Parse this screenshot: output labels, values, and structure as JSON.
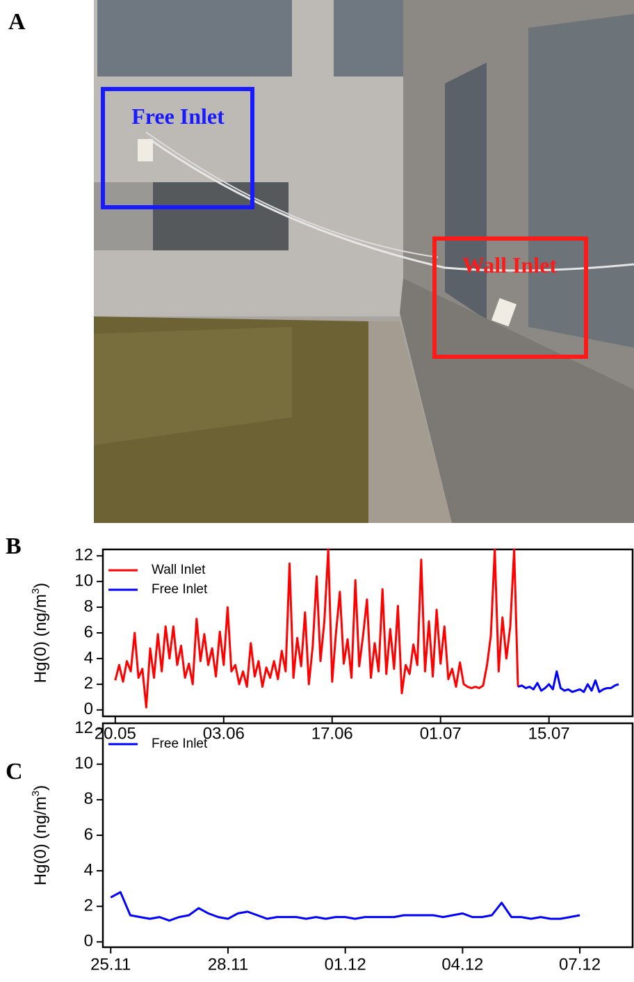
{
  "panel_labels": [
    "A",
    "B",
    "C"
  ],
  "photo": {
    "annotations": [
      "Free Inlet",
      "Wall Inlet"
    ]
  },
  "chart_data": [
    {
      "type": "line",
      "ylabel": [
        "Hg(0) (ng/m",
        "3",
        ")"
      ],
      "legend": "upper left",
      "xlim": [
        138.4,
        206.8
      ],
      "ylim": [
        -0.5,
        12.5
      ],
      "xticks": [
        {
          "value": 140,
          "label": "20.05"
        },
        {
          "value": 154,
          "label": "03.06"
        },
        {
          "value": 168,
          "label": "17.06"
        },
        {
          "value": 182,
          "label": "01.07"
        },
        {
          "value": 196,
          "label": "15.07"
        }
      ],
      "yticks": [
        0,
        2,
        4,
        6,
        8,
        10,
        12
      ],
      "series": [
        {
          "name": "Wall Inlet",
          "color": "#ff0000",
          "x": [
            140,
            140.5,
            141,
            141.5,
            142,
            142.5,
            143,
            143.5,
            144,
            144.5,
            145,
            145.5,
            146,
            146.5,
            147,
            147.5,
            148,
            148.5,
            149,
            149.5,
            150,
            150.5,
            151,
            151.5,
            152,
            152.5,
            153,
            153.5,
            154,
            154.5,
            155,
            155.5,
            156,
            156.5,
            157,
            157.5,
            158,
            158.5,
            159,
            159.5,
            160,
            160.5,
            161,
            161.5,
            162,
            162.5,
            163,
            163.5,
            164,
            164.5,
            165,
            165.5,
            166,
            166.5,
            167,
            167.5,
            168,
            168.5,
            169,
            169.5,
            170,
            170.5,
            171,
            171.5,
            172,
            172.5,
            173,
            173.5,
            174,
            174.5,
            175,
            175.5,
            176,
            176.5,
            177,
            177.5,
            178,
            178.5,
            179,
            179.5,
            180,
            180.5,
            181,
            181.5,
            182,
            182.5,
            183,
            183.5,
            184,
            184.5,
            185,
            185.5,
            186,
            186.5,
            187,
            187.5,
            188,
            188.5,
            189,
            189.5,
            190,
            190.5,
            191,
            191.5,
            192
          ],
          "values": [
            2.3,
            3.5,
            2.2,
            3.8,
            3.0,
            6.0,
            2.5,
            3.2,
            0.2,
            4.8,
            2.5,
            5.9,
            3.0,
            6.5,
            4.0,
            6.5,
            3.5,
            5.0,
            2.5,
            3.6,
            2.0,
            7.1,
            3.8,
            5.9,
            3.5,
            4.8,
            2.6,
            6.1,
            3.5,
            8.0,
            3.0,
            3.5,
            2.0,
            3.0,
            1.8,
            5.2,
            2.6,
            3.8,
            1.8,
            3.3,
            2.5,
            3.8,
            2.4,
            4.6,
            3.0,
            11.4,
            2.5,
            5.6,
            3.4,
            7.6,
            2.0,
            5.0,
            10.4,
            3.8,
            6.9,
            12.5,
            2.2,
            6.0,
            9.2,
            3.6,
            5.5,
            2.5,
            10.1,
            3.4,
            5.8,
            8.6,
            2.5,
            5.2,
            3.0,
            9.4,
            2.8,
            6.3,
            3.2,
            8.1,
            1.3,
            3.5,
            2.8,
            5.1,
            3.5,
            11.7,
            3.0,
            6.9,
            2.6,
            7.8,
            3.6,
            6.5,
            2.4,
            3.2,
            1.8,
            3.7,
            2.0,
            1.8,
            1.7,
            1.8,
            1.7,
            1.9,
            3.5,
            5.8,
            12.5,
            3.0,
            7.2,
            4.0,
            6.5,
            12.5,
            1.8
          ]
        },
        {
          "name": "Free Inlet",
          "color": "#0000ff",
          "x": [
            192,
            192.5,
            193,
            193.5,
            194,
            194.5,
            195,
            195.5,
            196,
            196.5,
            197,
            197.5,
            198,
            198.5,
            199,
            199.5,
            200,
            200.5,
            201,
            201.5,
            202,
            202.5,
            203,
            203.5,
            204,
            204.5,
            205
          ],
          "values": [
            1.8,
            1.9,
            1.7,
            1.8,
            1.6,
            2.1,
            1.5,
            1.7,
            2.0,
            1.6,
            3.0,
            1.7,
            1.5,
            1.6,
            1.4,
            1.5,
            1.6,
            1.4,
            2.0,
            1.5,
            2.3,
            1.4,
            1.6,
            1.7,
            1.7,
            1.9,
            2.0
          ]
        }
      ]
    },
    {
      "type": "line",
      "ylabel": [
        "Hg(0) (ng/m",
        "3",
        ")"
      ],
      "legend": "upper left",
      "xlim": [
        328.8,
        342.35
      ],
      "ylim": [
        -0.3,
        12.3
      ],
      "xticks": [
        {
          "value": 329,
          "label": "25.11"
        },
        {
          "value": 332,
          "label": "28.11"
        },
        {
          "value": 335,
          "label": "01.12"
        },
        {
          "value": 338,
          "label": "04.12"
        },
        {
          "value": 341,
          "label": "07.12"
        }
      ],
      "yticks": [
        0,
        2,
        4,
        6,
        8,
        10,
        12
      ],
      "series": [
        {
          "name": "Free Inlet",
          "color": "#0000ff",
          "x": [
            329,
            329.25,
            329.5,
            329.75,
            330,
            330.25,
            330.5,
            330.75,
            331,
            331.25,
            331.5,
            331.75,
            332,
            332.25,
            332.5,
            332.75,
            333,
            333.25,
            333.5,
            333.75,
            334,
            334.25,
            334.5,
            334.75,
            335,
            335.25,
            335.5,
            335.75,
            336,
            336.25,
            336.5,
            336.75,
            337,
            337.25,
            337.5,
            337.75,
            338,
            338.25,
            338.5,
            338.75,
            339,
            339.25,
            339.5,
            339.75,
            340,
            340.25,
            340.5,
            340.75,
            341
          ],
          "values": [
            2.5,
            2.8,
            1.5,
            1.4,
            1.3,
            1.4,
            1.2,
            1.4,
            1.5,
            1.9,
            1.6,
            1.4,
            1.3,
            1.6,
            1.7,
            1.5,
            1.3,
            1.4,
            1.4,
            1.4,
            1.3,
            1.4,
            1.3,
            1.4,
            1.4,
            1.3,
            1.4,
            1.4,
            1.4,
            1.4,
            1.5,
            1.5,
            1.5,
            1.5,
            1.4,
            1.5,
            1.6,
            1.4,
            1.4,
            1.5,
            2.2,
            1.4,
            1.4,
            1.3,
            1.4,
            1.3,
            1.3,
            1.4,
            1.5
          ]
        }
      ]
    }
  ]
}
